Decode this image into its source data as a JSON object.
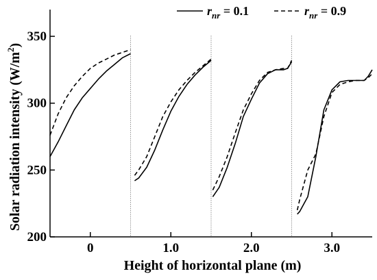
{
  "chart_data": {
    "type": "line",
    "xlabel": "Height of horizontal plane (m)",
    "ylabel_main": "Solar radiation intensity (W/m",
    "ylabel_sup": "2",
    "ylabel_end": ")",
    "ylim": [
      200,
      370
    ],
    "yticks": [
      200,
      250,
      300,
      350
    ],
    "xlim": [
      -0.5,
      3.5
    ],
    "xticks": [
      0,
      1.0,
      2.0,
      3.0
    ],
    "xtick_labels": [
      "0",
      "1.0",
      "2.0",
      "3.0"
    ],
    "separators": [
      0.5,
      1.5,
      2.5
    ],
    "legend": [
      {
        "var": "r",
        "sub": "nr",
        "eq": " = 0.1",
        "dash": "solid"
      },
      {
        "var": "r",
        "sub": "nr",
        "eq": " = 0.9",
        "dash": "dashed"
      }
    ],
    "series": [
      {
        "dash": "solid",
        "segments": [
          [
            [
              -0.5,
              260
            ],
            [
              -0.4,
              271
            ],
            [
              -0.3,
              283
            ],
            [
              -0.2,
              295
            ],
            [
              -0.1,
              304
            ],
            [
              0,
              311
            ],
            [
              0.1,
              318
            ],
            [
              0.2,
              324
            ],
            [
              0.3,
              329
            ],
            [
              0.4,
              334
            ],
            [
              0.5,
              337
            ]
          ],
          [
            [
              0.55,
              242
            ],
            [
              0.6,
              244
            ],
            [
              0.7,
              252
            ],
            [
              0.8,
              265
            ],
            [
              0.9,
              280
            ],
            [
              1.0,
              294
            ],
            [
              1.1,
              305
            ],
            [
              1.2,
              314
            ],
            [
              1.3,
              321
            ],
            [
              1.4,
              327
            ],
            [
              1.5,
              332
            ]
          ],
          [
            [
              1.52,
              230
            ],
            [
              1.6,
              237
            ],
            [
              1.7,
              252
            ],
            [
              1.8,
              270
            ],
            [
              1.9,
              290
            ],
            [
              2.0,
              303
            ],
            [
              2.1,
              315
            ],
            [
              2.2,
              322
            ],
            [
              2.3,
              325
            ],
            [
              2.4,
              325
            ],
            [
              2.45,
              326
            ],
            [
              2.5,
              331
            ]
          ],
          [
            [
              2.57,
              217
            ],
            [
              2.6,
              219
            ],
            [
              2.7,
              230
            ],
            [
              2.8,
              260
            ],
            [
              2.9,
              295
            ],
            [
              3.0,
              310
            ],
            [
              3.1,
              316
            ],
            [
              3.2,
              317
            ],
            [
              3.3,
              317
            ],
            [
              3.4,
              317
            ],
            [
              3.45,
              320
            ],
            [
              3.5,
              325
            ]
          ]
        ]
      },
      {
        "dash": "dashed",
        "segments": [
          [
            [
              -0.5,
              276
            ],
            [
              -0.4,
              292
            ],
            [
              -0.3,
              304
            ],
            [
              -0.2,
              313
            ],
            [
              -0.1,
              320
            ],
            [
              0,
              326
            ],
            [
              0.1,
              330
            ],
            [
              0.2,
              333
            ],
            [
              0.3,
              336
            ],
            [
              0.4,
              338
            ],
            [
              0.5,
              340
            ]
          ],
          [
            [
              0.55,
              246
            ],
            [
              0.6,
              250
            ],
            [
              0.7,
              260
            ],
            [
              0.8,
              275
            ],
            [
              0.9,
              290
            ],
            [
              1.0,
              301
            ],
            [
              1.1,
              310
            ],
            [
              1.2,
              317
            ],
            [
              1.3,
              323
            ],
            [
              1.4,
              328
            ],
            [
              1.5,
              333
            ]
          ],
          [
            [
              1.52,
              235
            ],
            [
              1.6,
              245
            ],
            [
              1.7,
              260
            ],
            [
              1.8,
              278
            ],
            [
              1.9,
              295
            ],
            [
              2.0,
              307
            ],
            [
              2.1,
              317
            ],
            [
              2.2,
              323
            ],
            [
              2.3,
              325
            ],
            [
              2.4,
              326
            ],
            [
              2.45,
              326
            ],
            [
              2.5,
              332
            ]
          ],
          [
            [
              2.57,
              220
            ],
            [
              2.6,
              228
            ],
            [
              2.7,
              250
            ],
            [
              2.75,
              256
            ],
            [
              2.8,
              262
            ],
            [
              2.9,
              290
            ],
            [
              3.0,
              308
            ],
            [
              3.1,
              314
            ],
            [
              3.2,
              316
            ],
            [
              3.3,
              317
            ],
            [
              3.4,
              317
            ],
            [
              3.45,
              319
            ],
            [
              3.5,
              322
            ]
          ]
        ]
      }
    ]
  }
}
